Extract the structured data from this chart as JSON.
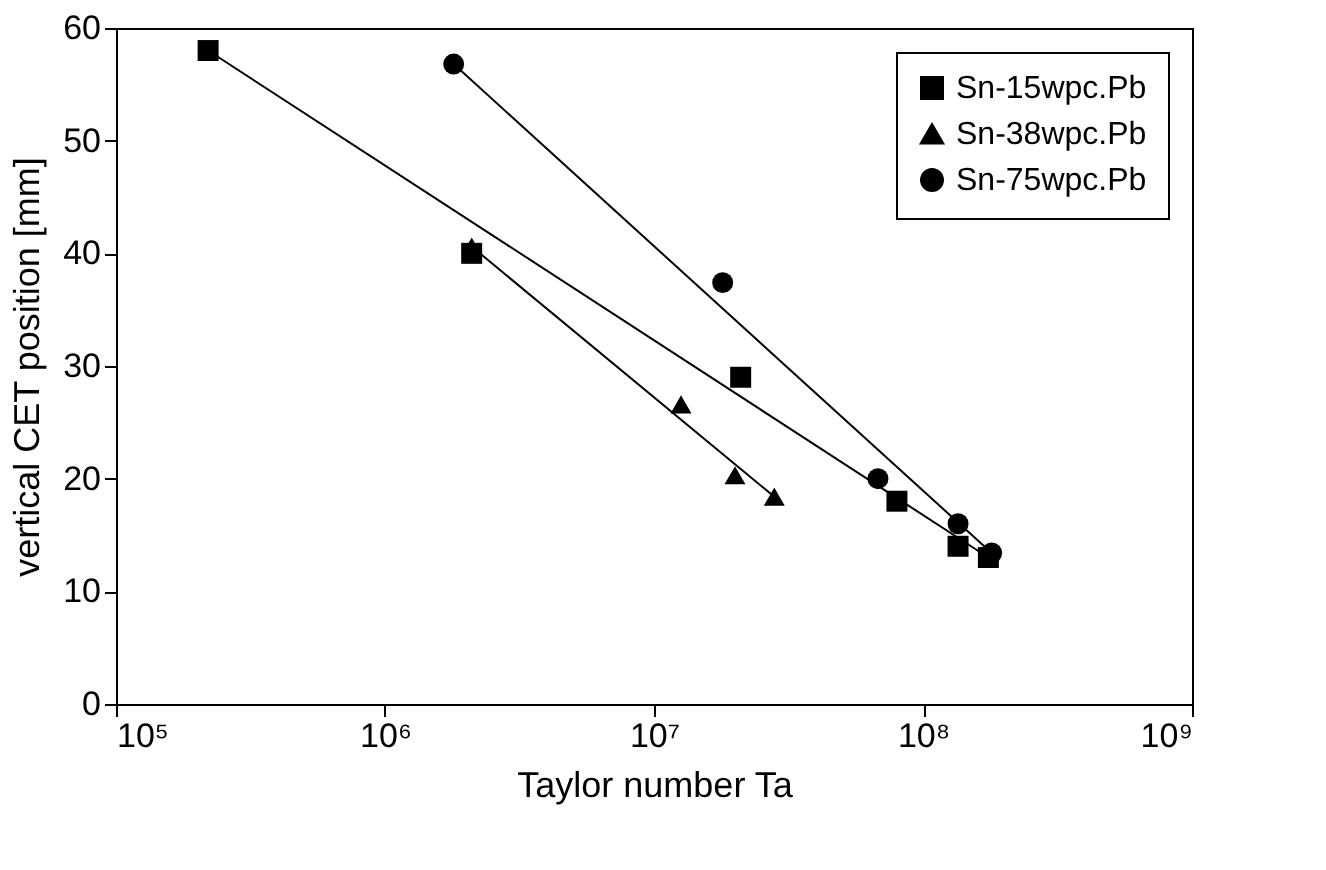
{
  "chart_data": {
    "type": "scatter",
    "xlabel": "Taylor number Ta",
    "ylabel": "vertical CET position [mm]",
    "log": "x",
    "xlim": [
      100000,
      1000000000
    ],
    "xticks": [
      {
        "value": 100000,
        "label": "10⁵"
      },
      {
        "value": 1000000,
        "label": "10⁶"
      },
      {
        "value": 10000000,
        "label": "10⁷"
      },
      {
        "value": 100000000,
        "label": "10⁸"
      },
      {
        "value": 1000000000,
        "label": "10⁹"
      }
    ],
    "ylim": [
      0,
      60
    ],
    "yticks": [
      0,
      10,
      20,
      30,
      40,
      50,
      60
    ],
    "grid": false,
    "legend": "top right",
    "series": [
      {
        "name": "Sn-15wpc.Pb",
        "color": "#000000",
        "marker": "square",
        "x": [
          220000,
          2100000,
          21000000,
          80000000,
          135000000,
          175000000
        ],
        "values": [
          58,
          40,
          29,
          18,
          14,
          13
        ]
      },
      {
        "name": "Sn-38wpc.Pb",
        "color": "#000000",
        "marker": "triangle",
        "x": [
          2100000,
          12600000,
          20000000,
          28000000
        ],
        "values": [
          40.6,
          26.6,
          20.3,
          18.4
        ]
      },
      {
        "name": "Sn-75wpc.Pb",
        "color": "#000000",
        "marker": "circle",
        "x": [
          1800000,
          18000000,
          68000000,
          135000000,
          180000000
        ],
        "values": [
          56.8,
          37.4,
          20,
          16,
          13.4
        ]
      },
      {
        "type": "line",
        "color": "#000000",
        "marker": "none",
        "x": [
          220000,
          175000000
        ],
        "values": [
          58,
          13
        ]
      },
      {
        "type": "line",
        "color": "#000000",
        "marker": "none",
        "x": [
          2100000,
          28000000
        ],
        "values": [
          40.6,
          18.4
        ]
      },
      {
        "type": "line",
        "color": "#000000",
        "marker": "none",
        "x": [
          1800000,
          180000000
        ],
        "values": [
          56.8,
          13.4
        ]
      }
    ]
  }
}
